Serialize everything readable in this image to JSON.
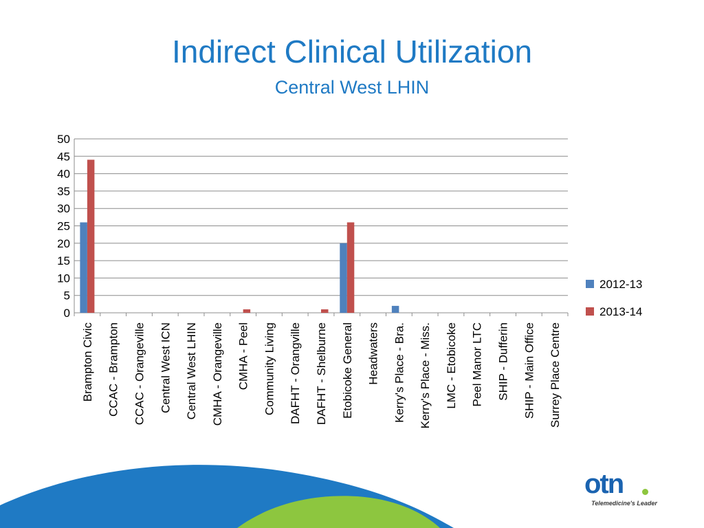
{
  "slide": {
    "title": "Indirect Clinical Utilization",
    "subtitle": "Central West LHIN"
  },
  "logo": {
    "mark": "otn",
    "tagline": "Telemedicine's Leader"
  },
  "colors": {
    "title": "#1f7ac4",
    "series_2012_13": "#4f81bd",
    "series_2013_14": "#c0504d",
    "wave_blue": "#1f7ac4",
    "wave_green": "#8dc63f"
  },
  "chart_data": {
    "type": "bar",
    "title": "",
    "xlabel": "",
    "ylabel": "",
    "ylim": [
      0,
      50
    ],
    "yticks": [
      "0",
      "5",
      "10",
      "15",
      "20",
      "25",
      "30",
      "35",
      "40",
      "45",
      "50"
    ],
    "grid": true,
    "legend_position": "right",
    "categories": [
      "Brampton Civic",
      "CCAC - Brampton",
      "CCAC - Orangeville",
      "Central West ICN",
      "Central West LHIN",
      "CMHA - Orangeville",
      "CMHA - Peel",
      "Community Living",
      "DAFHT - Orangville",
      "DAFHT - Shelburne",
      "Etobicoke General",
      "Headwaters",
      "Kerry's Place - Bra.",
      "Kerry's Place - Miss.",
      "LMC - Etobicoke",
      "Peel Manor LTC",
      "SHIP - Dufferin",
      "SHIP - Main Office",
      "Surrey Place Centre"
    ],
    "series": [
      {
        "name": "2012-13",
        "color": "#4f81bd",
        "values": [
          26,
          0,
          0,
          0,
          0,
          0,
          0,
          0,
          0,
          0,
          20,
          0,
          2,
          0,
          0,
          0,
          0,
          0,
          0
        ]
      },
      {
        "name": "2013-14",
        "color": "#c0504d",
        "values": [
          44,
          0,
          0,
          0,
          0,
          0,
          1,
          0,
          0,
          1,
          26,
          0,
          0,
          0,
          0,
          0,
          0,
          0,
          0
        ]
      }
    ]
  }
}
